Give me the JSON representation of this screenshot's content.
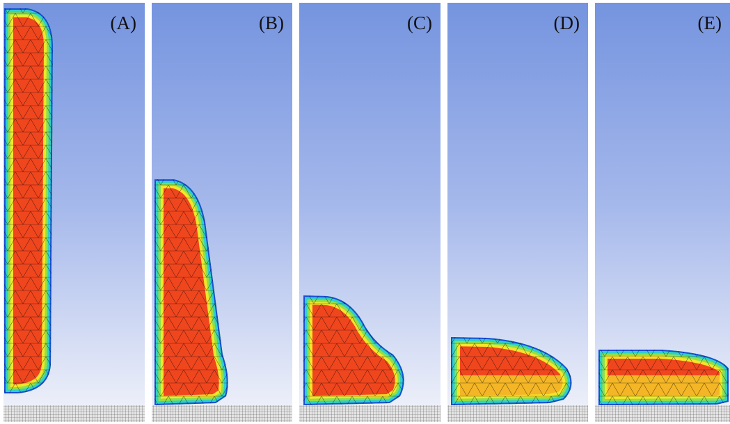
{
  "panels": [
    {
      "label": "(A)"
    },
    {
      "label": "(B)"
    },
    {
      "label": "(C)"
    },
    {
      "label": "(D)"
    },
    {
      "label": "(E)"
    }
  ]
}
